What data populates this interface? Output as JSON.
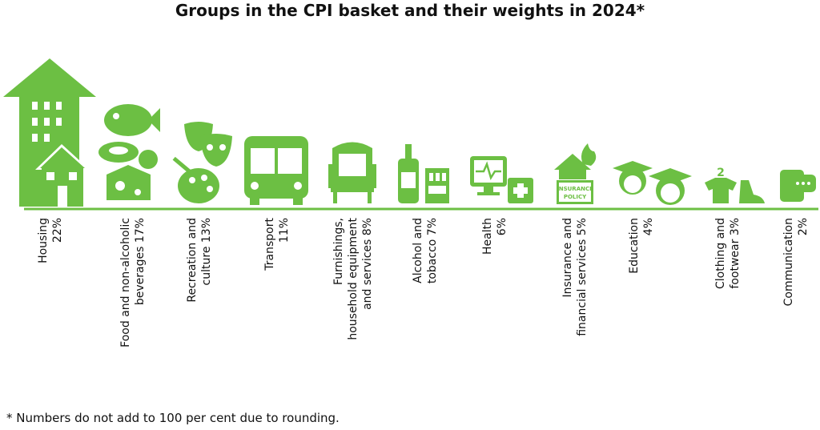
{
  "title": "Groups in the CPI basket and their weights in 2024*",
  "items": [
    {
      "lines": [
        "Housing",
        "22%"
      ]
    },
    {
      "lines": [
        "Food and non-alcoholic",
        "beverages 17%"
      ]
    },
    {
      "lines": [
        "Recreation and",
        "culture 13%"
      ]
    },
    {
      "lines": [
        "Transport",
        "11%"
      ]
    },
    {
      "lines": [
        "Furnishings,",
        "household equipment",
        "and services 8%"
      ]
    },
    {
      "lines": [
        "Alcohol and",
        "tobacco 7%"
      ]
    },
    {
      "lines": [
        "Health",
        "6%"
      ]
    },
    {
      "lines": [
        "Insurance and",
        "financial services 5%"
      ]
    },
    {
      "lines": [
        "Education",
        "4%"
      ]
    },
    {
      "lines": [
        "Clothing and",
        "footwear 3%"
      ]
    },
    {
      "lines": [
        "Communication",
        "2%"
      ]
    }
  ],
  "icon_text": "INSURANCE POLICY",
  "footnote": "* Numbers do not add to 100 per cent due to rounding."
}
